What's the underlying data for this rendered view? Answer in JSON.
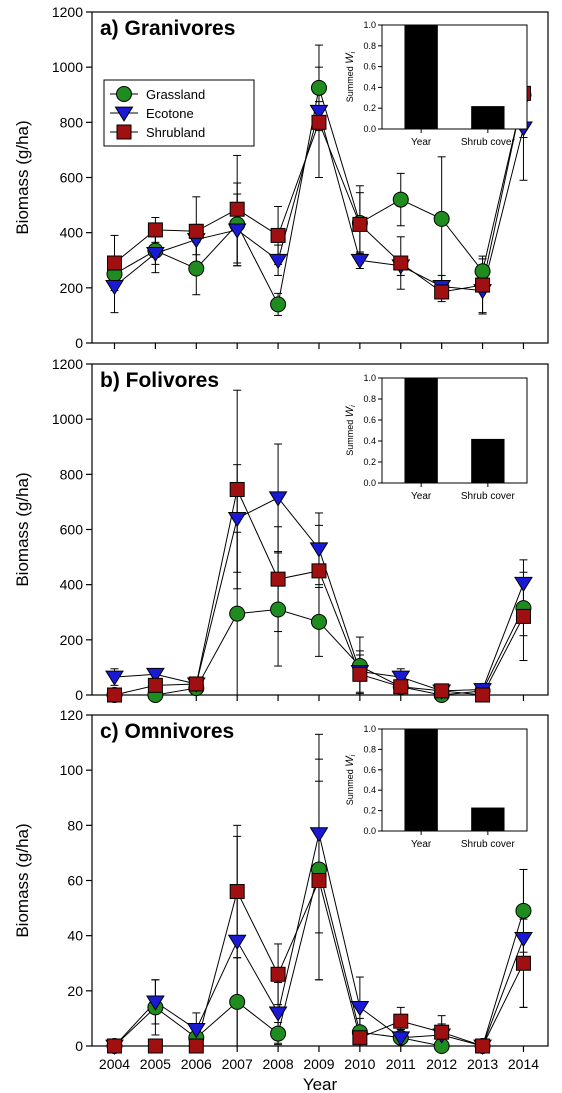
{
  "chart_data": [
    {
      "type": "line",
      "title": "a) Granivores",
      "ylabel": "Biomass (g/ha)",
      "xlabel": "",
      "ylim": [
        0,
        1200
      ],
      "yticks": [
        0,
        200,
        400,
        600,
        800,
        1000,
        1200
      ],
      "x": [
        2004,
        2005,
        2006,
        2007,
        2008,
        2009,
        2010,
        2011,
        2012,
        2013,
        2014
      ],
      "legend": {
        "placement": "upper-left"
      },
      "series": [
        {
          "name": "Grassland",
          "marker": "circle",
          "color": "#1e8c1e",
          "values": [
            250,
            335,
            270,
            430,
            140,
            925,
            435,
            520,
            450,
            260,
            900
          ],
          "err": [
            50,
            50,
            95,
            150,
            40,
            155,
            110,
            95,
            225,
            45,
            155
          ]
        },
        {
          "name": "Ecotone",
          "marker": "triangle-down",
          "color": "#1a1ad6",
          "values": [
            205,
            325,
            375,
            410,
            300,
            840,
            300,
            280,
            205,
            190,
            780
          ],
          "err": [
            95,
            70,
            55,
            130,
            55,
            35,
            30,
            35,
            40,
            80,
            190
          ]
        },
        {
          "name": "Shrubland",
          "marker": "square",
          "color": "#a01010",
          "values": [
            290,
            410,
            405,
            485,
            390,
            800,
            430,
            290,
            185,
            210,
            905
          ],
          "err": [
            100,
            45,
            125,
            195,
            105,
            200,
            140,
            95,
            35,
            105,
            160
          ]
        }
      ],
      "inset": {
        "type": "bar",
        "ylabel": "Summed W_i",
        "ylim": [
          0,
          1.0
        ],
        "yticks": [
          "0.0",
          "0.2",
          "0.4",
          "0.6",
          "0.8",
          "1.0"
        ],
        "categories": [
          "Year",
          "Shrub cover"
        ],
        "values": [
          1.0,
          0.22
        ]
      }
    },
    {
      "type": "line",
      "title": "b) Folivores",
      "ylabel": "Biomass (g/ha)",
      "xlabel": "",
      "ylim": [
        0,
        1200
      ],
      "yticks": [
        0,
        200,
        400,
        600,
        800,
        1000,
        1200
      ],
      "x": [
        2004,
        2005,
        2006,
        2007,
        2008,
        2009,
        2010,
        2011,
        2012,
        2013,
        2014
      ],
      "series": [
        {
          "name": "Grassland",
          "marker": "circle",
          "color": "#1e8c1e",
          "values": [
            0,
            0,
            25,
            295,
            310,
            265,
            105,
            30,
            0,
            15,
            315
          ],
          "err": [
            25,
            10,
            30,
            295,
            205,
            125,
            105,
            30,
            15,
            20,
            100
          ]
        },
        {
          "name": "Ecotone",
          "marker": "triangle-down",
          "color": "#1a1ad6",
          "values": [
            65,
            75,
            40,
            640,
            715,
            530,
            85,
            65,
            15,
            20,
            405
          ],
          "err": [
            30,
            20,
            20,
            195,
            195,
            130,
            75,
            30,
            15,
            20,
            85
          ]
        },
        {
          "name": "Shrubland",
          "marker": "square",
          "color": "#a01010",
          "values": [
            0,
            35,
            40,
            745,
            420,
            450,
            75,
            30,
            15,
            0,
            285
          ],
          "err": [
            25,
            35,
            25,
            360,
            190,
            165,
            70,
            30,
            15,
            15,
            160
          ]
        }
      ],
      "inset": {
        "type": "bar",
        "ylabel": "Summed W_i",
        "ylim": [
          0,
          1.0
        ],
        "yticks": [
          "0.0",
          "0.2",
          "0.4",
          "0.6",
          "0.8",
          "1.0"
        ],
        "categories": [
          "Year",
          "Shrub cover"
        ],
        "values": [
          1.0,
          0.42
        ]
      }
    },
    {
      "type": "line",
      "title": "c) Omnivores",
      "ylabel": "Biomass (g/ha)",
      "xlabel": "Year",
      "ylim": [
        0,
        120
      ],
      "yticks": [
        0,
        20,
        40,
        60,
        80,
        100,
        120
      ],
      "x": [
        2004,
        2005,
        2006,
        2007,
        2008,
        2009,
        2010,
        2011,
        2012,
        2013,
        2014
      ],
      "series": [
        {
          "name": "Grassland",
          "marker": "circle",
          "color": "#1e8c1e",
          "values": [
            0,
            14,
            3,
            16,
            4.5,
            64,
            5,
            3,
            0,
            0,
            49
          ],
          "err": [
            0.5,
            10,
            4,
            16,
            4,
            40,
            5,
            3,
            1,
            0.5,
            15
          ]
        },
        {
          "name": "Ecotone",
          "marker": "triangle-down",
          "color": "#1a1ad6",
          "values": [
            0,
            16,
            6,
            38,
            12,
            77,
            14,
            3,
            4,
            0,
            39
          ],
          "err": [
            0.5,
            8,
            6,
            38,
            11,
            36,
            11,
            3,
            4,
            0.5,
            25
          ]
        },
        {
          "name": "Shrubland",
          "marker": "square",
          "color": "#a01010",
          "values": [
            0,
            0,
            0,
            56,
            26,
            60,
            3,
            9,
            5,
            0,
            30
          ],
          "err": [
            0.5,
            0.5,
            1,
            24,
            11,
            36,
            3,
            5,
            6,
            0.5,
            16
          ]
        }
      ],
      "inset": {
        "type": "bar",
        "ylabel": "Summed W_i",
        "ylim": [
          0,
          1.0
        ],
        "yticks": [
          "0.0",
          "0.2",
          "0.4",
          "0.6",
          "0.8",
          "1.0"
        ],
        "categories": [
          "Year",
          "Shrub cover"
        ],
        "values": [
          1.0,
          0.23
        ]
      }
    }
  ]
}
